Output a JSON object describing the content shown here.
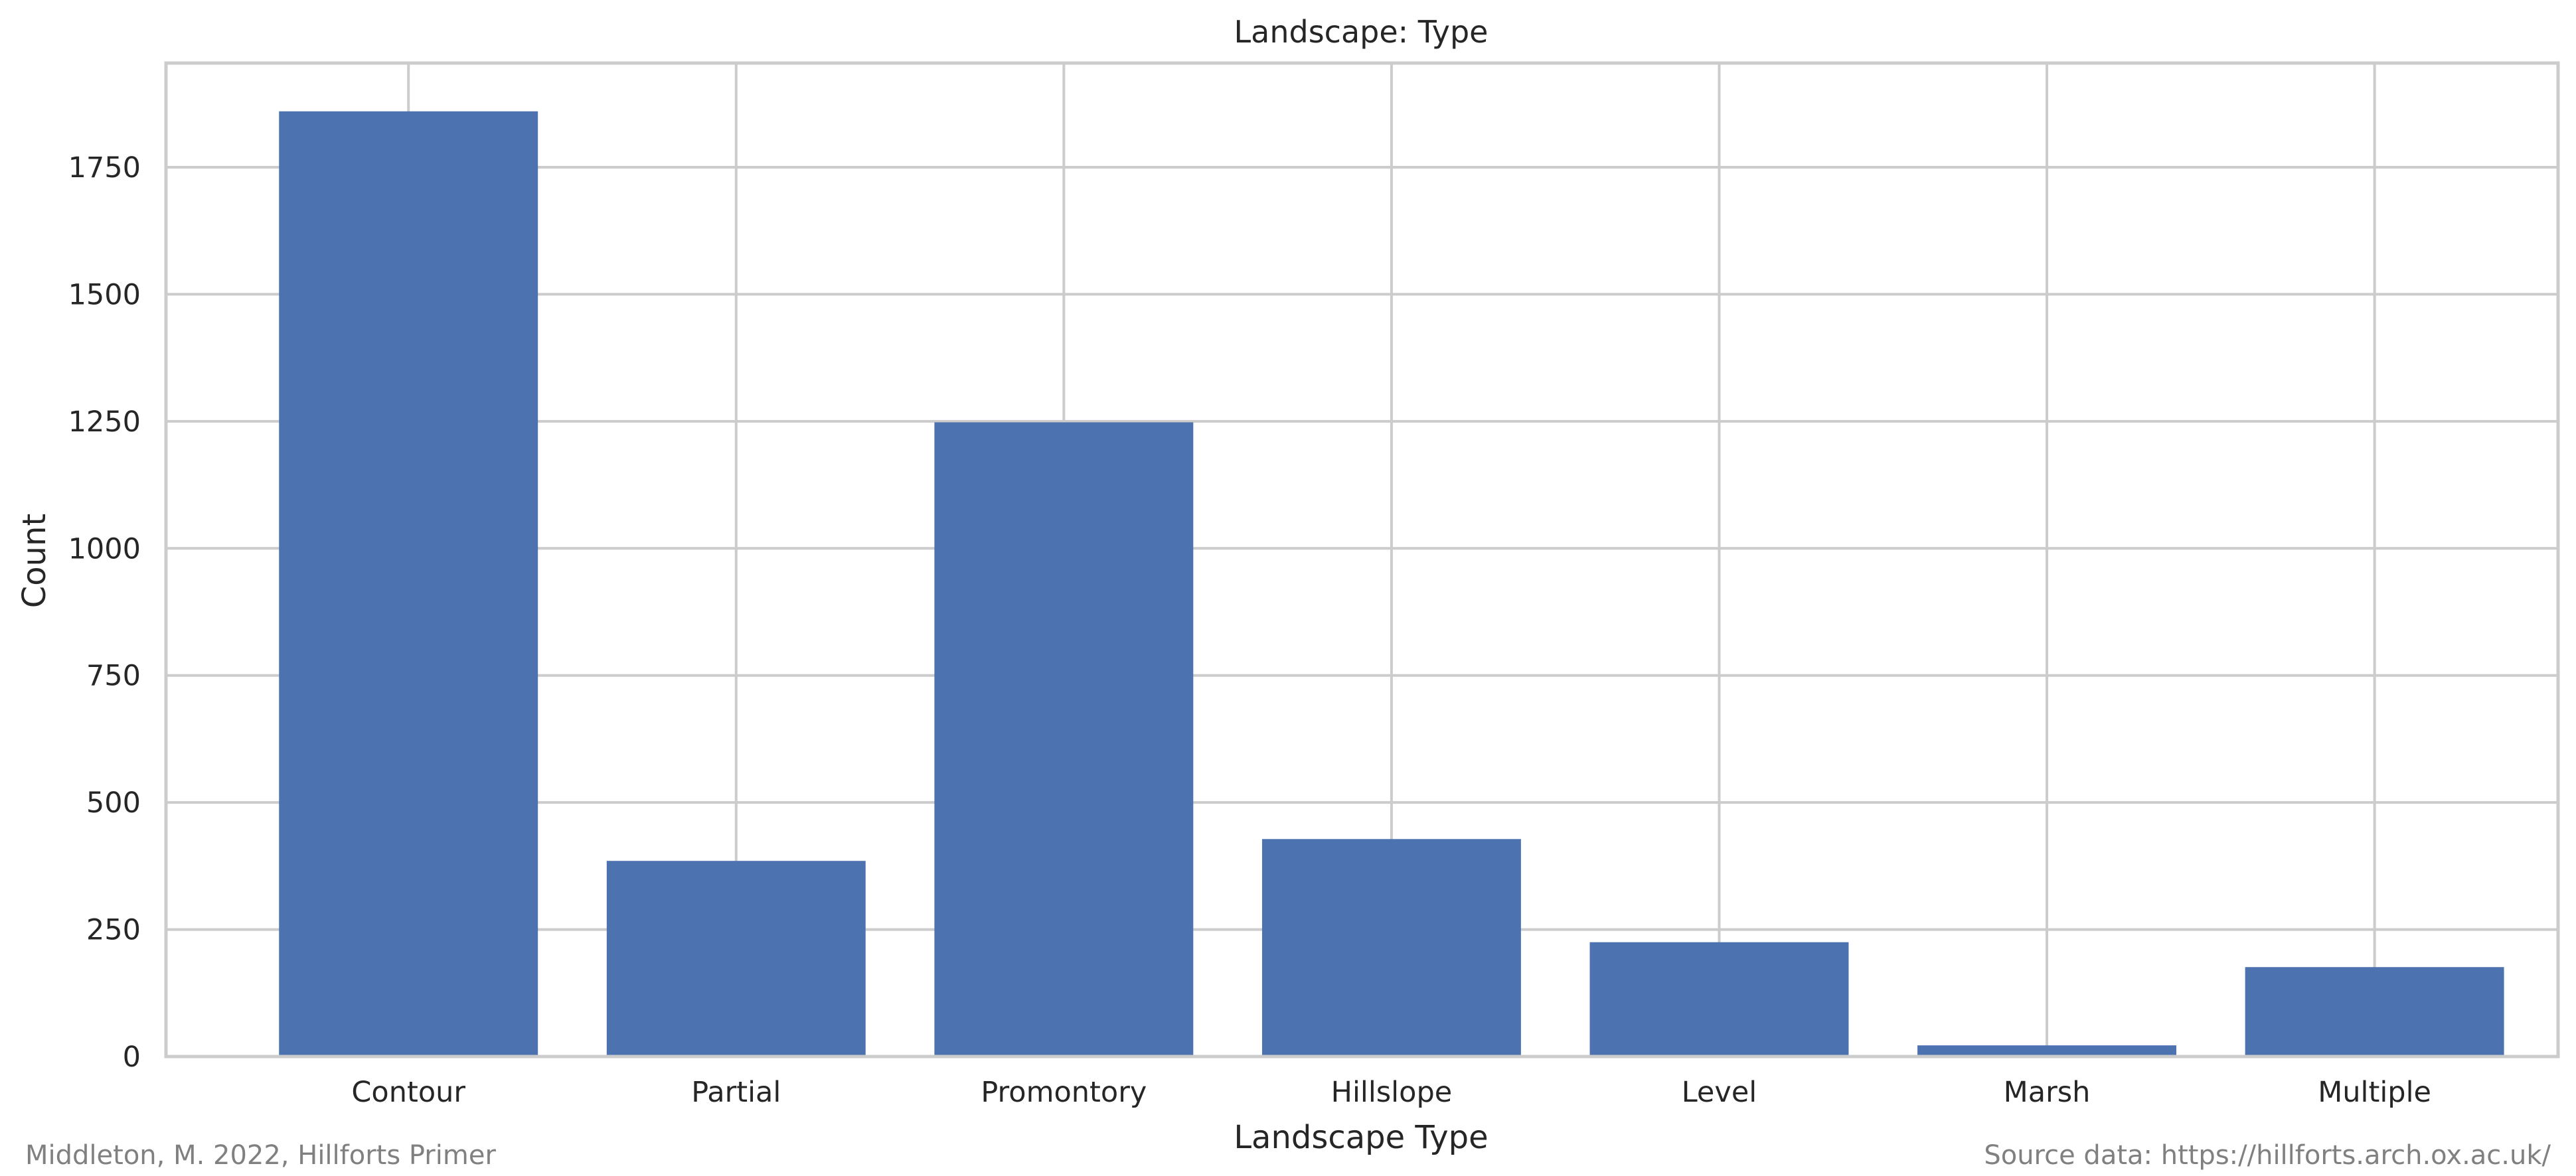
{
  "chart_data": {
    "type": "bar",
    "title": "Landscape: Type",
    "xlabel": "Landscape Type",
    "ylabel": "Count",
    "categories": [
      "Contour",
      "Partial",
      "Promontory",
      "Hillslope",
      "Level",
      "Marsh",
      "Multiple"
    ],
    "values": [
      1860,
      385,
      1248,
      428,
      225,
      22,
      176
    ],
    "ylim": [
      0,
      1955
    ],
    "yticks": [
      0,
      250,
      500,
      750,
      1000,
      1250,
      1500,
      1750
    ],
    "grid": true,
    "bar_color": "#4c72b0",
    "grid_color": "#cccccc"
  },
  "footer": {
    "left": "Middleton, M. 2022, Hillforts Primer",
    "right": "Source data: https://hillforts.arch.ox.ac.uk/"
  }
}
